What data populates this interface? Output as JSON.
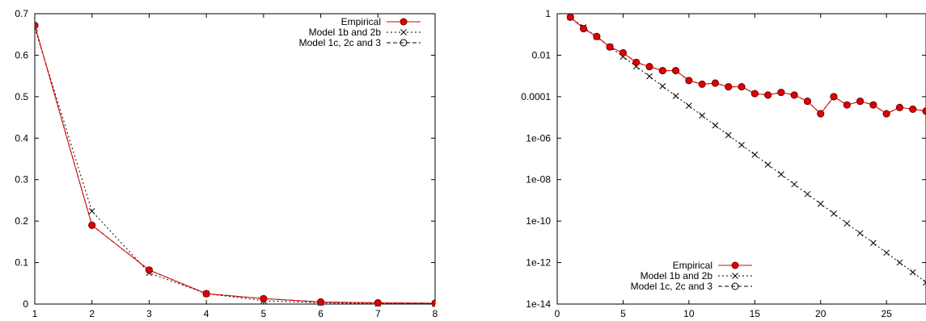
{
  "chart_data": [
    {
      "type": "line",
      "x": [
        1,
        2,
        3,
        4,
        5,
        6,
        7,
        8
      ],
      "xlim": [
        1,
        8
      ],
      "ylim": [
        0,
        0.7
      ],
      "xticks": [
        "1",
        "2",
        "3",
        "4",
        "5",
        "6",
        "7",
        "8"
      ],
      "yticks": [
        "0",
        "0.1",
        "0.2",
        "0.3",
        "0.4",
        "0.5",
        "0.6",
        "0.7"
      ],
      "legend_position": "top-right",
      "grid": false,
      "series": [
        {
          "name": "Empirical",
          "color": "#e00000",
          "marker": "filled-circle",
          "dash": "solid",
          "values": [
            0.672,
            0.19,
            0.082,
            0.025,
            0.013,
            0.005,
            0.003,
            0.002
          ]
        },
        {
          "name": "Model 1b and 2b",
          "color": "#000000",
          "marker": "cross",
          "dash": "dotted",
          "values": [
            0.665,
            0.224,
            0.075,
            0.025,
            0.008,
            0.003,
            0.001,
            0.0003
          ]
        },
        {
          "name": "Model 1c, 2c and 3",
          "color": "#000000",
          "marker": "open-circle",
          "dash": "dashed",
          "values": [
            0.672,
            0.19,
            0.082,
            0.025,
            0.013,
            0.005,
            0.003,
            0.002
          ]
        }
      ]
    },
    {
      "type": "line",
      "y_scale": "log",
      "x": [
        1,
        2,
        3,
        4,
        5,
        6,
        7,
        8,
        9,
        10,
        11,
        12,
        13,
        14,
        15,
        16,
        17,
        18,
        19,
        20,
        21,
        22,
        23,
        24,
        25,
        26,
        27,
        28
      ],
      "xlim": [
        0,
        28
      ],
      "ylim": [
        1e-14,
        1
      ],
      "xticks": [
        "0",
        "5",
        "10",
        "15",
        "20",
        "25"
      ],
      "yticks": [
        "1",
        "0.01",
        "0.0001",
        "1e-06",
        "1e-08",
        "1e-10",
        "1e-12",
        "1e-14"
      ],
      "legend_position": "bottom-center",
      "grid": false,
      "series": [
        {
          "name": "Empirical",
          "color": "#e00000",
          "marker": "filled-circle",
          "dash": "solid",
          "values": [
            0.68,
            0.19,
            0.08,
            0.025,
            0.013,
            0.0045,
            0.0028,
            0.0018,
            0.0018,
            0.0006,
            0.0004,
            0.00045,
            0.0003,
            0.0003,
            0.00014,
            0.00012,
            0.00016,
            0.00012,
            6e-05,
            1.5e-05,
            0.0001,
            4e-05,
            6e-05,
            4e-05,
            1.5e-05,
            3e-05,
            2.5e-05,
            2e-05
          ]
        },
        {
          "name": "Model 1b and 2b",
          "color": "#000000",
          "marker": "cross",
          "dash": "dotted",
          "values": [
            0.665,
            0.224,
            0.075,
            0.025,
            0.0085,
            0.00286,
            0.00096,
            0.00032,
            0.000108,
            3.65e-05,
            1.23e-05,
            4.1e-06,
            1.4e-06,
            4.7e-07,
            1.6e-07,
            5.3e-08,
            1.8e-08,
            6e-09,
            2e-09,
            6.8e-10,
            2.3e-10,
            7.7e-11,
            2.6e-11,
            8.8e-12,
            3e-12,
            1e-12,
            3.4e-13,
            1.1e-13
          ]
        },
        {
          "name": "Model 1c, 2c and 3",
          "color": "#000000",
          "marker": "open-circle",
          "dash": "dashed",
          "values": [
            0.68,
            0.19,
            0.08,
            0.025,
            0.013,
            0.0045,
            0.0028,
            0.0018,
            0.0018,
            0.0006,
            0.0004,
            0.00045,
            0.0003,
            0.0003,
            0.00014,
            0.00012,
            0.00016,
            0.00012,
            6e-05,
            1.5e-05,
            0.0001,
            4e-05,
            6e-05,
            4e-05,
            1.5e-05,
            3e-05,
            2.5e-05,
            2e-05
          ]
        }
      ]
    }
  ]
}
